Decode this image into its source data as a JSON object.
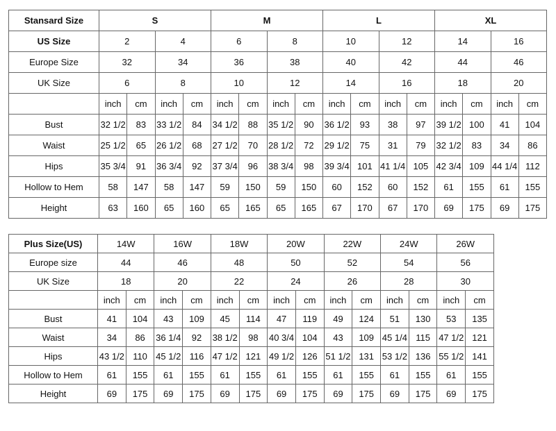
{
  "tables": [
    {
      "header": [
        "Stansard Size",
        "S",
        "M",
        "L",
        "XL"
      ],
      "size_rows": [
        {
          "label": "US Size",
          "values": [
            2,
            4,
            6,
            8,
            10,
            12,
            14,
            16
          ]
        },
        {
          "label": "Europe Size",
          "values": [
            32,
            34,
            36,
            38,
            40,
            42,
            44,
            46
          ]
        },
        {
          "label": "UK Size",
          "values": [
            6,
            8,
            10,
            12,
            14,
            16,
            18,
            20
          ]
        }
      ],
      "unit_row": [
        "inch",
        "cm",
        "inch",
        "cm",
        "inch",
        "cm",
        "inch",
        "cm",
        "inch",
        "cm",
        "inch",
        "cm",
        "inch",
        "cm",
        "inch",
        "cm"
      ],
      "measure_rows": [
        {
          "label": "Bust",
          "values": [
            "32 1/2",
            83,
            "33 1/2",
            84,
            "34 1/2",
            88,
            "35 1/2",
            90,
            "36 1/2",
            93,
            38,
            97,
            "39 1/2",
            100,
            41,
            104
          ]
        },
        {
          "label": "Waist",
          "values": [
            "25 1/2",
            65,
            "26 1/2",
            68,
            "27 1/2",
            70,
            "28 1/2",
            72,
            "29 1/2",
            75,
            31,
            79,
            "32 1/2",
            83,
            34,
            86
          ]
        },
        {
          "label": "Hips",
          "values": [
            "35 3/4",
            91,
            "36 3/4",
            92,
            "37 3/4",
            96,
            "38 3/4",
            98,
            "39 3/4",
            101,
            "41 1/4",
            105,
            "42 3/4",
            109,
            "44 1/4",
            112
          ]
        },
        {
          "label": "Hollow to Hem",
          "values": [
            58,
            147,
            58,
            147,
            59,
            150,
            59,
            150,
            60,
            152,
            60,
            152,
            61,
            155,
            61,
            155
          ]
        },
        {
          "label": "Height",
          "values": [
            63,
            160,
            65,
            160,
            65,
            165,
            65,
            165,
            67,
            170,
            67,
            170,
            69,
            175,
            69,
            175
          ]
        }
      ]
    },
    {
      "header": [
        "Plus Size(US)",
        "14W",
        "16W",
        "18W",
        "20W",
        "22W",
        "24W",
        "26W"
      ],
      "size_rows": [
        {
          "label": "Europe size",
          "values": [
            44,
            46,
            48,
            50,
            52,
            54,
            56
          ]
        },
        {
          "label": "UK Size",
          "values": [
            18,
            20,
            22,
            24,
            26,
            28,
            30
          ]
        }
      ],
      "unit_row": [
        "inch",
        "cm",
        "inch",
        "cm",
        "inch",
        "cm",
        "inch",
        "cm",
        "inch",
        "cm",
        "inch",
        "cm",
        "inch",
        "cm"
      ],
      "measure_rows": [
        {
          "label": "Bust",
          "values": [
            41,
            104,
            43,
            109,
            45,
            114,
            47,
            119,
            49,
            124,
            51,
            130,
            53,
            135
          ]
        },
        {
          "label": "Waist",
          "values": [
            34,
            86,
            "36 1/4",
            92,
            "38 1/2",
            98,
            "40 3/4",
            104,
            43,
            109,
            "45 1/4",
            115,
            "47 1/2",
            121
          ]
        },
        {
          "label": "Hips",
          "values": [
            "43 1/2",
            110,
            "45 1/2",
            116,
            "47 1/2",
            121,
            "49 1/2",
            126,
            "51 1/2",
            131,
            "53 1/2",
            136,
            "55 1/2",
            141
          ]
        },
        {
          "label": "Hollow to Hem",
          "values": [
            61,
            155,
            61,
            155,
            61,
            155,
            61,
            155,
            61,
            155,
            61,
            155,
            61,
            155
          ]
        },
        {
          "label": "Height",
          "values": [
            69,
            175,
            69,
            175,
            69,
            175,
            69,
            175,
            69,
            175,
            69,
            175,
            69,
            175
          ]
        }
      ]
    }
  ]
}
